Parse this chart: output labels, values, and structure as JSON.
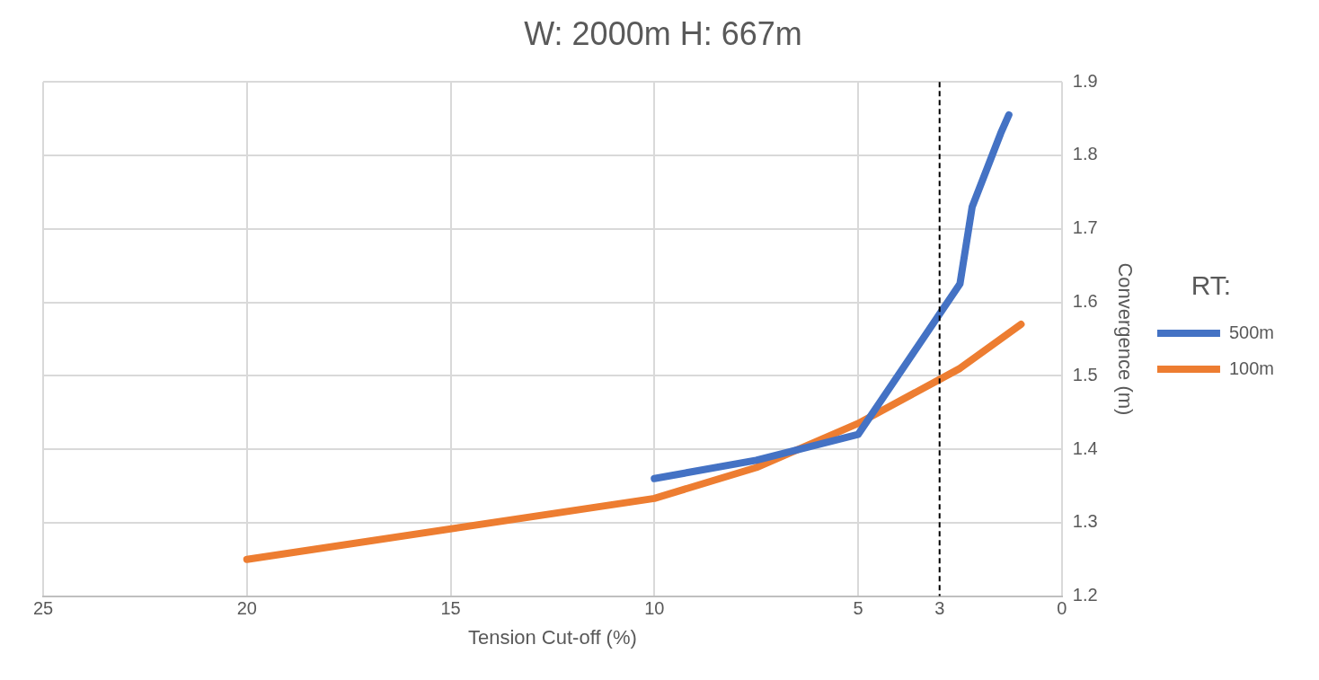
{
  "chart_data": {
    "type": "line",
    "title": "W: 2000m H: 667m",
    "xlabel": "Tension Cut-off (%)",
    "ylabel": "Convergence (m)",
    "legend_title": "RT:",
    "series": [
      {
        "name": "500m",
        "color": "#4472c4",
        "x": [
          10,
          7.5,
          5,
          2.5,
          2.2,
          1.5,
          1.3
        ],
        "values": [
          1.36,
          1.385,
          1.42,
          1.625,
          1.73,
          1.83,
          1.855
        ]
      },
      {
        "name": "100m",
        "color": "#ed7d31",
        "x": [
          20,
          10,
          7.5,
          5,
          2.5,
          1
        ],
        "values": [
          1.25,
          1.333,
          1.375,
          1.435,
          1.51,
          1.57
        ]
      }
    ],
    "xlim": [
      25,
      0
    ],
    "xticks": [
      25,
      20,
      15,
      10,
      5,
      3,
      0
    ],
    "ylim": [
      1.2,
      1.9
    ],
    "yticks": [
      1.2,
      1.3,
      1.4,
      1.5,
      1.6,
      1.7,
      1.8,
      1.9
    ],
    "ref_lines": [
      {
        "axis": "x",
        "value": 3,
        "color": "#000000",
        "line_style": "dashed"
      }
    ],
    "grid": true,
    "legend": "right",
    "marker": "none",
    "line_style": "solid"
  }
}
